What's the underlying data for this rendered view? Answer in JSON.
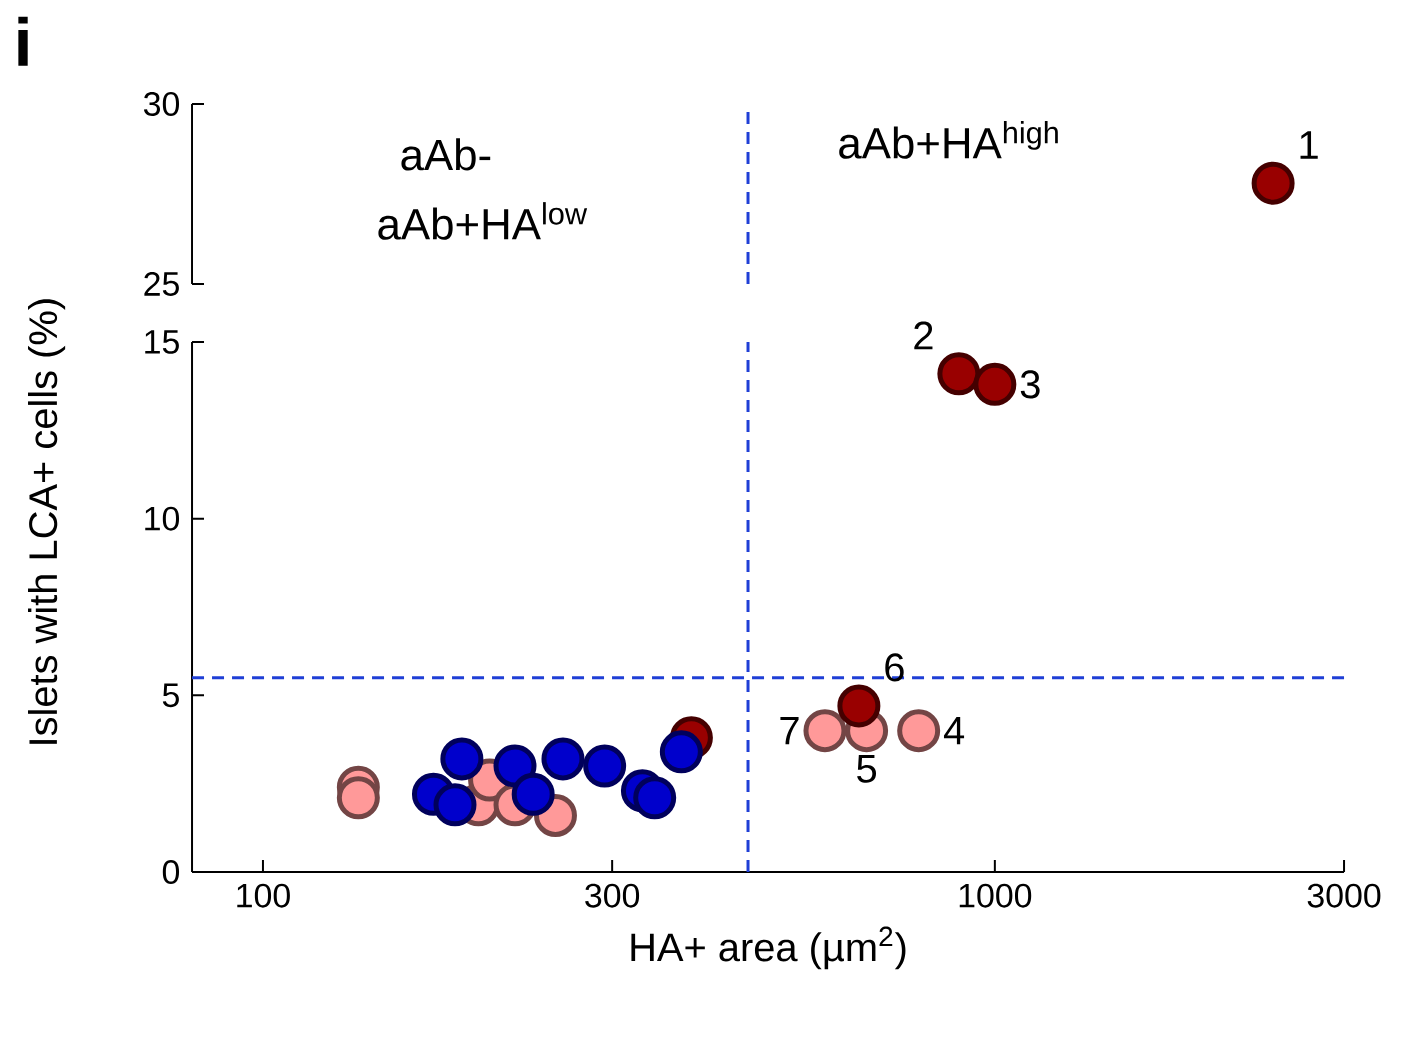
{
  "chart_data": [
    {
      "type": "scatter",
      "title": "i",
      "log": "x",
      "xlim": [
        80,
        3000
      ],
      "ylim": [
        25,
        30
      ],
      "yticks": [
        25,
        30
      ],
      "tick_labels": "y",
      "marker": "circle",
      "annotations": [
        "aAb-",
        "aAb+HA$^{low}$",
        "aAb+HA$^{high}$",
        {
          "text": "1",
          "x": 2400,
          "y": 27.8
        }
      ],
      "ref_lines": [
        {
          "axis": "x",
          "value": 460,
          "color": "#1f3fd6",
          "line_style": "dashed"
        }
      ],
      "series": [
        {
          "color": "#990000",
          "x": [
            2400
          ],
          "values": [
            27.8
          ]
        }
      ]
    },
    {
      "type": "scatter",
      "xlabel": "HA+ area (µm$^{2}$)",
      "ylabel": "Islets with LCA+ cells (%)",
      "log": "x",
      "xlim": [
        80,
        3000
      ],
      "ylim": [
        0,
        15
      ],
      "xticks": [
        100,
        300,
        1000,
        3000
      ],
      "yticks": [
        0,
        5,
        10,
        15
      ],
      "marker": "circle",
      "annotations": [
        {
          "text": "2",
          "x": 893,
          "y": 14.1
        },
        {
          "text": "3",
          "x": 1000,
          "y": 13.8
        },
        {
          "text": "4",
          "x": 787,
          "y": 4.0
        },
        {
          "text": "5",
          "x": 668,
          "y": 4.0
        },
        {
          "text": "6",
          "x": 652,
          "y": 4.7
        },
        {
          "text": "7",
          "x": 586,
          "y": 4.0
        }
      ],
      "ref_lines": [
        {
          "axis": "x",
          "value": 460,
          "color": "#1f3fd6",
          "line_style": "dashed"
        },
        {
          "axis": "y",
          "value": 5.5,
          "color": "#1f3fd6",
          "line_style": "dashed"
        }
      ],
      "series": [
        {
          "color": "#ff9999",
          "x": [
            787,
            668,
            586,
            135,
            135,
            197,
            204,
            221,
            251
          ],
          "values": [
            4.0,
            4.0,
            4.0,
            2.4,
            2.1,
            1.9,
            2.6,
            1.9,
            1.6
          ]
        },
        {
          "color": "#990000",
          "x": [
            893,
            1000,
            652,
            385
          ],
          "values": [
            14.1,
            13.8,
            4.7,
            3.8
          ]
        },
        {
          "color": "#0000cc",
          "x": [
            187,
            171,
            183,
            221,
            234,
            257,
            293,
            330,
            343,
            373
          ],
          "values": [
            3.2,
            2.2,
            1.9,
            3.0,
            2.2,
            3.2,
            3.0,
            2.3,
            2.1,
            3.4
          ]
        }
      ]
    }
  ]
}
